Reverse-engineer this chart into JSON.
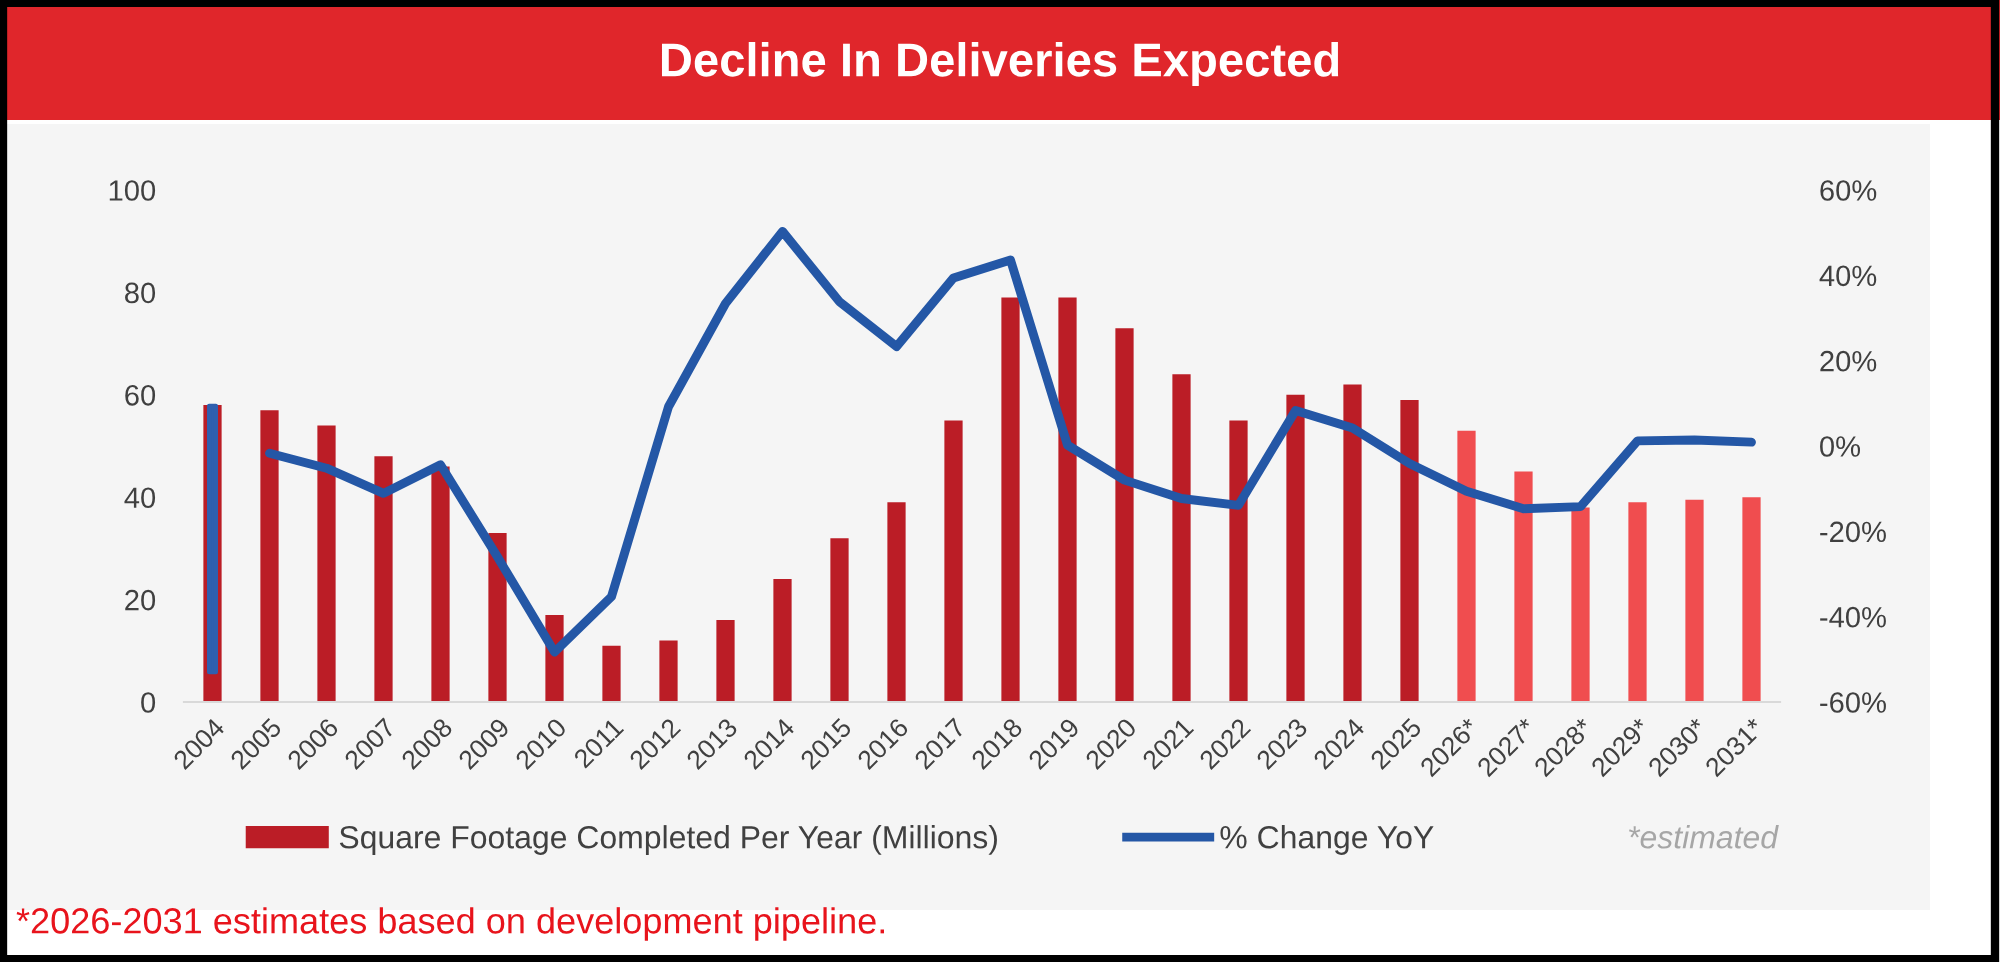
{
  "chart_data": {
    "type": "bar",
    "title": "Decline In Deliveries Expected",
    "categories": [
      "2004",
      "2005",
      "2006",
      "2007",
      "2008",
      "2009",
      "2010",
      "2011",
      "2012",
      "2013",
      "2014",
      "2015",
      "2016",
      "2017",
      "2018",
      "2019",
      "2020",
      "2021",
      "2022",
      "2023",
      "2024",
      "2025",
      "2026*",
      "2027*",
      "2028*",
      "2029*",
      "2030*",
      "2031*"
    ],
    "series": [
      {
        "name": "Square Footage Completed Per Year (Millions)",
        "color": "#bb1d26",
        "colors": [
          "#bb1d26",
          "#bb1d26",
          "#bb1d26",
          "#bb1d26",
          "#bb1d26",
          "#bb1d26",
          "#bb1d26",
          "#bb1d26",
          "#bb1d26",
          "#bb1d26",
          "#bb1d26",
          "#bb1d26",
          "#bb1d26",
          "#bb1d26",
          "#bb1d26",
          "#bb1d26",
          "#bb1d26",
          "#bb1d26",
          "#bb1d26",
          "#bb1d26",
          "#bb1d26",
          "#bb1d26",
          "#f04d4f",
          "#f04d4f",
          "#f04d4f",
          "#f04d4f",
          "#f04d4f",
          "#f04d4f"
        ],
        "values": [
          58,
          57,
          54,
          48,
          46,
          33,
          17,
          11,
          12,
          16,
          24,
          32,
          39,
          55,
          79,
          79,
          73,
          64,
          55,
          60,
          62,
          59,
          53,
          45,
          38,
          39,
          39.5,
          40
        ]
      },
      {
        "name": "% Change YoY",
        "type": "line",
        "axis": "y2",
        "color": "#2457a6",
        "values": [
          null,
          -1.7,
          -5.2,
          -11.1,
          -4.4,
          -26,
          -48.3,
          -35.3,
          9.2,
          33.4,
          50.3,
          33.8,
          23.3,
          39.4,
          43.6,
          0.2,
          -8,
          -12.3,
          -13.9,
          8.3,
          4.2,
          -4.1,
          -10.6,
          -14.7,
          -14.2,
          1.2,
          1.4,
          0.9
        ]
      },
      {
        "axis": "y2",
        "color": "#2f5faf",
        "base": [
          -53,
          null,
          null,
          null,
          null,
          null,
          null,
          null,
          null,
          null,
          null,
          null,
          null,
          null,
          null,
          null,
          null,
          null,
          null,
          null,
          null,
          null,
          null,
          null,
          null,
          null,
          null,
          null
        ],
        "values": [
          62.4,
          null,
          null,
          null,
          null,
          null,
          null,
          null,
          null,
          null,
          null,
          null,
          null,
          null,
          null,
          null,
          null,
          null,
          null,
          null,
          null,
          null,
          null,
          null,
          null,
          null,
          null,
          null
        ]
      }
    ],
    "ylim": [
      0,
      100
    ],
    "yticks": [
      0,
      20,
      40,
      60,
      80,
      100
    ],
    "y2lim": [
      -60,
      60
    ],
    "y2ticks": [
      {
        "value": -60,
        "label": "-60%"
      },
      {
        "value": -40,
        "label": "-40%"
      },
      {
        "value": -20,
        "label": "-20%"
      },
      {
        "value": 0,
        "label": "0%"
      },
      {
        "value": 20,
        "label": "20%"
      },
      {
        "value": 40,
        "label": "40%"
      },
      {
        "value": 60,
        "label": "60%"
      }
    ],
    "legend": "bottom",
    "grid": false,
    "annotations": [
      "*estimated",
      "*2026-2031 estimates based on development pipeline."
    ]
  }
}
